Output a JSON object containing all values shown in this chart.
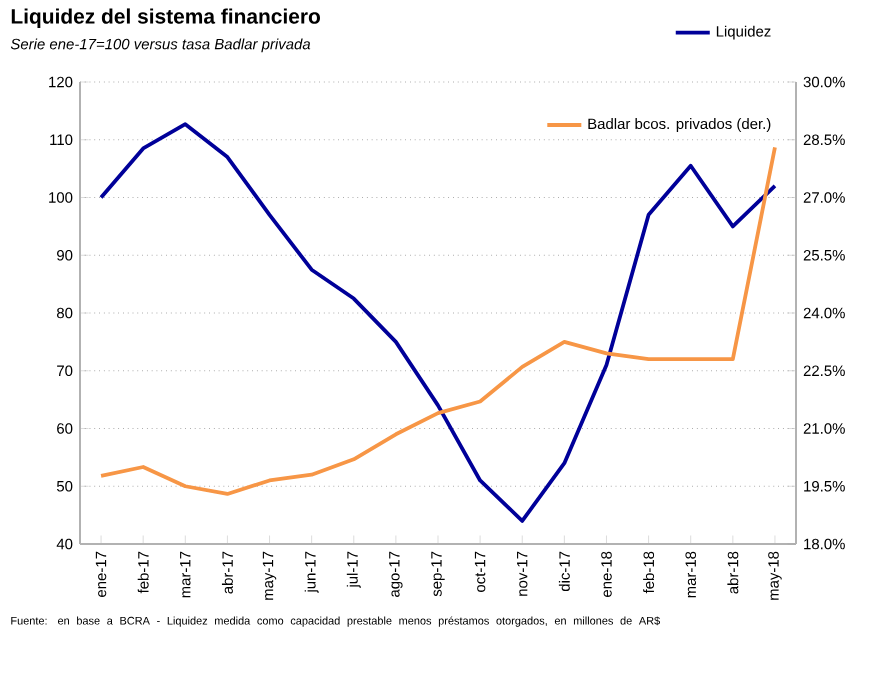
{
  "chart_data": {
    "type": "line",
    "title": "Liquidez del sistema financiero",
    "subtitle": "Serie ene-17=100 versus tasa Badlar privada",
    "categories": [
      "ene-17",
      "feb-17",
      "mar-17",
      "abr-17",
      "may-17",
      "jun-17",
      "jul-17",
      "ago-17",
      "sep-17",
      "oct-17",
      "nov-17",
      "dic-17",
      "ene-18",
      "feb-18",
      "mar-18",
      "abr-18",
      "may-18"
    ],
    "series": [
      {
        "name": "Liquidez",
        "color": "#000099",
        "values": [
          100,
          108.5,
          112.7,
          107,
          97,
          87.5,
          82.5,
          75,
          64,
          51,
          44,
          54,
          71,
          97,
          105.5,
          95,
          102
        ]
      },
      {
        "name": "Badlar bcos. privados (der.)",
        "color": "#f79646",
        "axis": "y2",
        "values": [
          19.77,
          20.0,
          19.5,
          19.3,
          19.65,
          19.8,
          20.2,
          20.85,
          21.4,
          21.7,
          22.6,
          23.25,
          22.95,
          22.8,
          22.8,
          22.8,
          28.3
        ]
      }
    ],
    "ylim": [
      40,
      120
    ],
    "yticks": [
      40,
      50,
      60,
      70,
      80,
      90,
      100,
      110,
      120
    ],
    "y2lim": [
      18,
      30
    ],
    "y2ticks": [
      {
        "value": 18,
        "label": "18.0%"
      },
      {
        "value": 19.5,
        "label": "19.5%"
      },
      {
        "value": 21,
        "label": "21.0%"
      },
      {
        "value": 22.5,
        "label": "22.5%"
      },
      {
        "value": 24,
        "label": "24.0%"
      },
      {
        "value": 25.5,
        "label": "25.5%"
      },
      {
        "value": 27,
        "label": "27.0%"
      },
      {
        "value": 28.5,
        "label": "28.5%"
      },
      {
        "value": 30,
        "label": "30.0%"
      }
    ],
    "grid": "y",
    "legend": "top right",
    "marker": "none",
    "line_style": "solid",
    "annotations": [
      "Fuente: en base a BCRA - Liquidez medida como capacidad prestable menos préstamos otorgados, en millones de AR$"
    ]
  }
}
